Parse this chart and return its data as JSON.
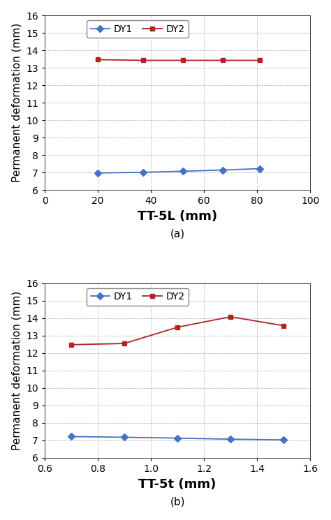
{
  "plot_a": {
    "x": [
      20,
      37,
      52,
      67,
      81
    ],
    "dy1": [
      6.98,
      7.02,
      7.08,
      7.15,
      7.23
    ],
    "dy2": [
      13.47,
      13.43,
      13.43,
      13.43,
      13.43
    ],
    "xlabel": "TT-5L (mm)",
    "xlim": [
      0,
      100
    ],
    "xticks": [
      0,
      20,
      40,
      60,
      80,
      100
    ],
    "label": "(a)"
  },
  "plot_b": {
    "x": [
      0.7,
      0.9,
      1.1,
      1.3,
      1.5
    ],
    "dy1": [
      7.22,
      7.18,
      7.13,
      7.07,
      7.03
    ],
    "dy2": [
      12.48,
      12.55,
      13.48,
      14.08,
      13.57
    ],
    "xlabel": "TT-5t (mm)",
    "xlim": [
      0.6,
      1.6
    ],
    "xticks": [
      0.6,
      0.8,
      1.0,
      1.2,
      1.4,
      1.6
    ],
    "label": "(b)"
  },
  "ylabel": "Permanent deformation (mm)",
  "ylim": [
    6,
    16
  ],
  "yticks": [
    6,
    7,
    8,
    9,
    10,
    11,
    12,
    13,
    14,
    15,
    16
  ],
  "dy1_color": "#4472C4",
  "dy2_color": "#B22222",
  "dy1_marker": "D",
  "dy2_marker": "s",
  "legend_labels": [
    "DY1",
    "DY2"
  ],
  "grid_color": "#BBBBBB",
  "bg_color": "#FFFFFF",
  "xlabel_fontsize": 13,
  "ylabel_fontsize": 11,
  "label_fontsize": 11,
  "tick_fontsize": 10,
  "legend_fontsize": 10
}
